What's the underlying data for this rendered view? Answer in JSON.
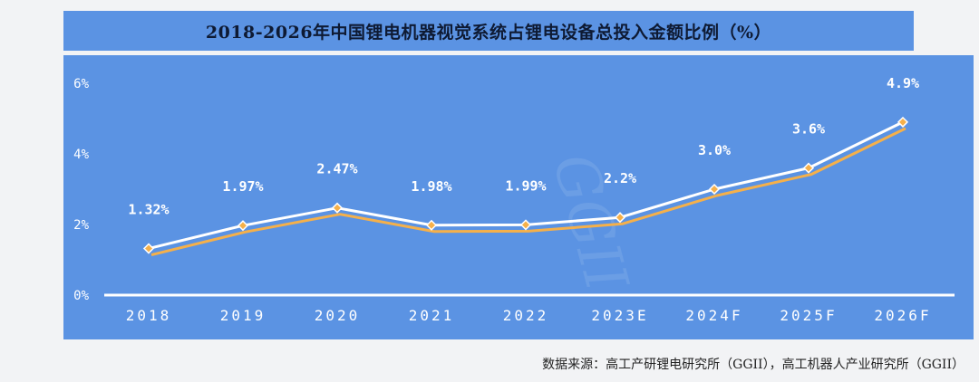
{
  "title": "2018-2026年中国锂电机器视觉系统占锂电设备总投入金额比例（%）",
  "source": "数据来源：高工产研锂电研究所（GGII），高工机器人产业研究所（GGII）",
  "watermark": "GGII",
  "colors": {
    "background": "#5b93e3",
    "main_line": "#ffffff",
    "shadow_line": "#f5b04a",
    "marker": "#f5b04a",
    "axis": "#ffffff"
  },
  "chart_data": {
    "type": "line",
    "title": "2018-2026年中国锂电机器视觉系统占锂电设备总投入金额比例（%）",
    "xlabel": "",
    "ylabel": "",
    "categories": [
      "2018",
      "2019",
      "2020",
      "2021",
      "2022",
      "2023E",
      "2024F",
      "2025F",
      "2026F"
    ],
    "values": [
      1.32,
      1.97,
      2.47,
      1.98,
      1.99,
      2.2,
      3.0,
      3.6,
      4.9
    ],
    "data_labels": [
      "1.32%",
      "1.97%",
      "2.47%",
      "1.98%",
      "1.99%",
      "2.2%",
      "3.0%",
      "3.6%",
      "4.9%"
    ],
    "ylim": [
      0,
      6
    ],
    "yticks": [
      0,
      2,
      4,
      6
    ],
    "ytick_labels": [
      "0%",
      "2%",
      "4%",
      "6%"
    ],
    "grid": false,
    "legend": "none"
  }
}
